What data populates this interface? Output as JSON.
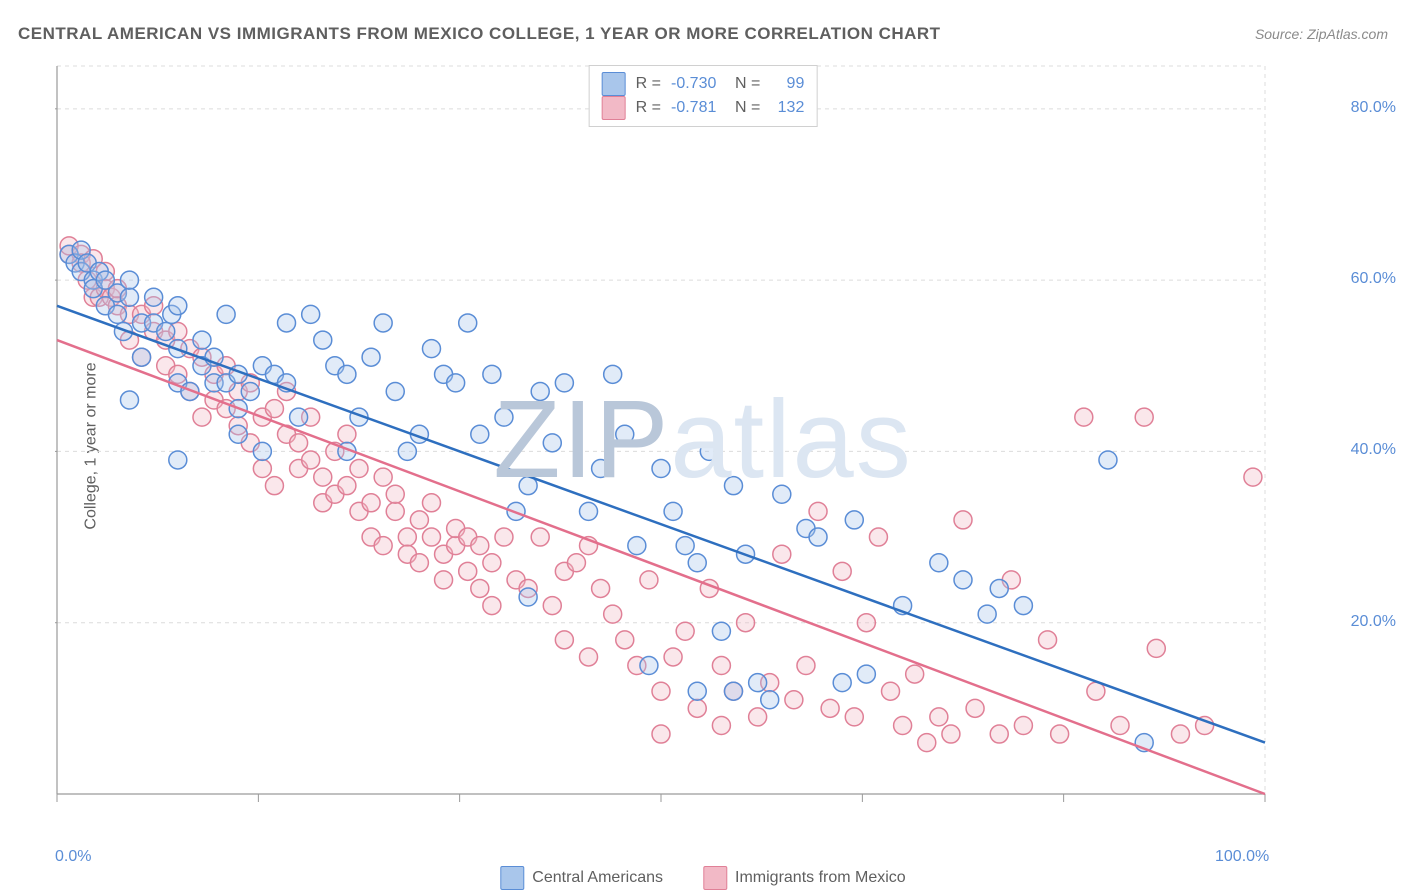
{
  "chart": {
    "type": "scatter",
    "title": "CENTRAL AMERICAN VS IMMIGRANTS FROM MEXICO COLLEGE, 1 YEAR OR MORE CORRELATION CHART",
    "source_label": "Source: ZipAtlas.com",
    "y_axis_label": "College, 1 year or more",
    "watermark": "ZIPatlas",
    "background_color": "#ffffff",
    "grid_color": "#dcdcdc",
    "axis_color": "#9a9a9a",
    "label_color": "#5f5f5f",
    "tick_label_color": "#5a8dd6",
    "tick_fontsize": 16,
    "title_fontsize": 17,
    "xlim": [
      0,
      100
    ],
    "ylim": [
      0,
      85
    ],
    "x_ticks": [
      0,
      16.67,
      33.33,
      50,
      66.67,
      83.33,
      100
    ],
    "x_tick_labels": [
      "0.0%",
      "",
      "",
      "",
      "",
      "",
      "100.0%"
    ],
    "y_ticks": [
      20,
      40,
      60,
      80
    ],
    "y_tick_labels": [
      "20.0%",
      "40.0%",
      "60.0%",
      "80.0%"
    ],
    "marker_radius": 9,
    "marker_stroke_width": 1.5,
    "marker_fill_opacity": 0.35,
    "trend_line_width": 2.5,
    "legend_top": {
      "rows": [
        {
          "swatch": 0,
          "r_label": "R =",
          "r_value": "-0.730",
          "n_label": "N =",
          "n_value": "99"
        },
        {
          "swatch": 1,
          "r_label": "R =",
          "r_value": "-0.781",
          "n_label": "N =",
          "n_value": "132"
        }
      ]
    },
    "legend_bottom": [
      {
        "swatch": 0,
        "label": "Central Americans"
      },
      {
        "swatch": 1,
        "label": "Immigrants from Mexico"
      }
    ],
    "series": [
      {
        "name": "Central Americans",
        "fill_color": "#a9c6eb",
        "stroke_color": "#5a8dd6",
        "trend_color": "#2e6fbf",
        "trend": {
          "x1": 0,
          "y1": 57,
          "x2": 100,
          "y2": 6
        },
        "points": [
          [
            1,
            63
          ],
          [
            1.5,
            62
          ],
          [
            2,
            63.5
          ],
          [
            2,
            61
          ],
          [
            2.5,
            62
          ],
          [
            3,
            60
          ],
          [
            3,
            59
          ],
          [
            3.5,
            61
          ],
          [
            4,
            60
          ],
          [
            4,
            57
          ],
          [
            5,
            58.5
          ],
          [
            5,
            56
          ],
          [
            5.5,
            54
          ],
          [
            6,
            58
          ],
          [
            6,
            60
          ],
          [
            6,
            46
          ],
          [
            7,
            55
          ],
          [
            7,
            51
          ],
          [
            8,
            55
          ],
          [
            8,
            58
          ],
          [
            9,
            54
          ],
          [
            9.5,
            56
          ],
          [
            10,
            57
          ],
          [
            10,
            52
          ],
          [
            10,
            48
          ],
          [
            10,
            39
          ],
          [
            11,
            47
          ],
          [
            12,
            53
          ],
          [
            12,
            50
          ],
          [
            13,
            51
          ],
          [
            13,
            48
          ],
          [
            14,
            48
          ],
          [
            14,
            56
          ],
          [
            15,
            49
          ],
          [
            15,
            45
          ],
          [
            15,
            42
          ],
          [
            16,
            47
          ],
          [
            17,
            40
          ],
          [
            17,
            50
          ],
          [
            18,
            49
          ],
          [
            19,
            48
          ],
          [
            19,
            55
          ],
          [
            20,
            44
          ],
          [
            21,
            56
          ],
          [
            22,
            53
          ],
          [
            23,
            50
          ],
          [
            24,
            49
          ],
          [
            24,
            40
          ],
          [
            25,
            44
          ],
          [
            26,
            51
          ],
          [
            27,
            55
          ],
          [
            28,
            47
          ],
          [
            29,
            40
          ],
          [
            30,
            42
          ],
          [
            31,
            52
          ],
          [
            32,
            49
          ],
          [
            33,
            48
          ],
          [
            34,
            55
          ],
          [
            35,
            42
          ],
          [
            36,
            49
          ],
          [
            37,
            44
          ],
          [
            38,
            33
          ],
          [
            39,
            23
          ],
          [
            39,
            36
          ],
          [
            40,
            47
          ],
          [
            41,
            41
          ],
          [
            42,
            48
          ],
          [
            44,
            33
          ],
          [
            45,
            38
          ],
          [
            46,
            49
          ],
          [
            47,
            42
          ],
          [
            48,
            29
          ],
          [
            49,
            15
          ],
          [
            50,
            38
          ],
          [
            51,
            33
          ],
          [
            52,
            29
          ],
          [
            53,
            27
          ],
          [
            53,
            12
          ],
          [
            54,
            40
          ],
          [
            55,
            19
          ],
          [
            56,
            12
          ],
          [
            56,
            36
          ],
          [
            57,
            28
          ],
          [
            58,
            13
          ],
          [
            59,
            11
          ],
          [
            60,
            35
          ],
          [
            62,
            31
          ],
          [
            63,
            30
          ],
          [
            65,
            13
          ],
          [
            66,
            32
          ],
          [
            67,
            14
          ],
          [
            70,
            22
          ],
          [
            73,
            27
          ],
          [
            75,
            25
          ],
          [
            77,
            21
          ],
          [
            78,
            24
          ],
          [
            80,
            22
          ],
          [
            87,
            39
          ],
          [
            90,
            6
          ]
        ]
      },
      {
        "name": "Immigrants from Mexico",
        "fill_color": "#f2b9c6",
        "stroke_color": "#e08097",
        "trend_color": "#e36f8c",
        "trend": {
          "x1": 0,
          "y1": 53,
          "x2": 100,
          "y2": 0
        },
        "points": [
          [
            1,
            63
          ],
          [
            1,
            64
          ],
          [
            2,
            63
          ],
          [
            2,
            62
          ],
          [
            2.5,
            60
          ],
          [
            3,
            62.5
          ],
          [
            3,
            58
          ],
          [
            3.5,
            58
          ],
          [
            4,
            61
          ],
          [
            4,
            59
          ],
          [
            4.5,
            58
          ],
          [
            5,
            57
          ],
          [
            5,
            59
          ],
          [
            6,
            56
          ],
          [
            6,
            53
          ],
          [
            7,
            56
          ],
          [
            7,
            51
          ],
          [
            8,
            54
          ],
          [
            8,
            57
          ],
          [
            9,
            53
          ],
          [
            9,
            50
          ],
          [
            10,
            49
          ],
          [
            10,
            54
          ],
          [
            11,
            52
          ],
          [
            11,
            47
          ],
          [
            12,
            51
          ],
          [
            12,
            44
          ],
          [
            13,
            46
          ],
          [
            13,
            49
          ],
          [
            14,
            45
          ],
          [
            14,
            50
          ],
          [
            15,
            47
          ],
          [
            15,
            43
          ],
          [
            16,
            48
          ],
          [
            16,
            41
          ],
          [
            17,
            44
          ],
          [
            17,
            38
          ],
          [
            18,
            45
          ],
          [
            18,
            36
          ],
          [
            19,
            42
          ],
          [
            19,
            47
          ],
          [
            20,
            41
          ],
          [
            20,
            38
          ],
          [
            21,
            39
          ],
          [
            21,
            44
          ],
          [
            22,
            37
          ],
          [
            22,
            34
          ],
          [
            23,
            35
          ],
          [
            23,
            40
          ],
          [
            24,
            36
          ],
          [
            24,
            42
          ],
          [
            25,
            33
          ],
          [
            25,
            38
          ],
          [
            26,
            34
          ],
          [
            26,
            30
          ],
          [
            27,
            37
          ],
          [
            27,
            29
          ],
          [
            28,
            33
          ],
          [
            28,
            35
          ],
          [
            29,
            30
          ],
          [
            29,
            28
          ],
          [
            30,
            32
          ],
          [
            30,
            27
          ],
          [
            31,
            30
          ],
          [
            31,
            34
          ],
          [
            32,
            28
          ],
          [
            32,
            25
          ],
          [
            33,
            29
          ],
          [
            33,
            31
          ],
          [
            34,
            26
          ],
          [
            34,
            30
          ],
          [
            35,
            29
          ],
          [
            35,
            24
          ],
          [
            36,
            27
          ],
          [
            36,
            22
          ],
          [
            37,
            30
          ],
          [
            38,
            25
          ],
          [
            39,
            24
          ],
          [
            40,
            30
          ],
          [
            41,
            22
          ],
          [
            42,
            26
          ],
          [
            42,
            18
          ],
          [
            43,
            27
          ],
          [
            44,
            16
          ],
          [
            44,
            29
          ],
          [
            45,
            24
          ],
          [
            46,
            21
          ],
          [
            47,
            18
          ],
          [
            48,
            15
          ],
          [
            49,
            25
          ],
          [
            50,
            12
          ],
          [
            50,
            7
          ],
          [
            51,
            16
          ],
          [
            52,
            19
          ],
          [
            53,
            10
          ],
          [
            54,
            24
          ],
          [
            55,
            8
          ],
          [
            55,
            15
          ],
          [
            56,
            12
          ],
          [
            57,
            20
          ],
          [
            58,
            9
          ],
          [
            59,
            13
          ],
          [
            60,
            28
          ],
          [
            61,
            11
          ],
          [
            62,
            15
          ],
          [
            63,
            33
          ],
          [
            64,
            10
          ],
          [
            65,
            26
          ],
          [
            66,
            9
          ],
          [
            67,
            20
          ],
          [
            68,
            30
          ],
          [
            69,
            12
          ],
          [
            70,
            8
          ],
          [
            71,
            14
          ],
          [
            72,
            6
          ],
          [
            73,
            9
          ],
          [
            74,
            7
          ],
          [
            75,
            32
          ],
          [
            76,
            10
          ],
          [
            78,
            7
          ],
          [
            79,
            25
          ],
          [
            80,
            8
          ],
          [
            82,
            18
          ],
          [
            83,
            7
          ],
          [
            85,
            44
          ],
          [
            86,
            12
          ],
          [
            88,
            8
          ],
          [
            90,
            44
          ],
          [
            91,
            17
          ],
          [
            93,
            7
          ],
          [
            95,
            8
          ],
          [
            99,
            37
          ]
        ]
      }
    ]
  }
}
